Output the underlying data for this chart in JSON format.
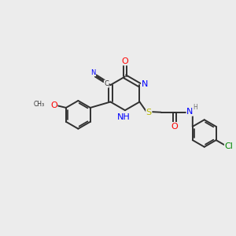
{
  "bg_color": "#ececec",
  "colors": {
    "N": "#0000ff",
    "O": "#ff0000",
    "S": "#b8b800",
    "Cl": "#008800",
    "C": "#303030",
    "H": "#707070"
  },
  "fs": 8.0,
  "fs_sm": 6.0,
  "lw": 1.4,
  "lw_sm": 1.1
}
